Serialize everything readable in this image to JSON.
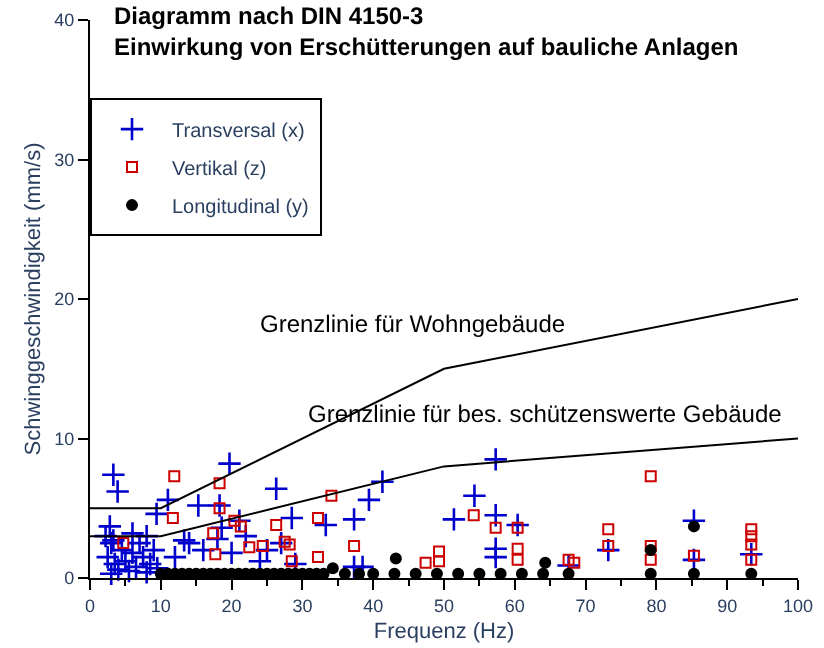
{
  "chart_data": {
    "type": "scatter",
    "title": "Diagramm nach DIN 4150-3\nEinwirkung von Erschütterungen auf bauliche Anlagen",
    "xlabel": "Frequenz (Hz)",
    "ylabel": "Schwinggeschwindigkeit (mm/s)",
    "xlim": [
      0,
      100
    ],
    "ylim": [
      0,
      40
    ],
    "xticks": [
      0,
      10,
      20,
      30,
      40,
      50,
      60,
      70,
      80,
      90,
      100
    ],
    "yticks": [
      0,
      10,
      20,
      30,
      40
    ],
    "legend": "top left",
    "series": [
      {
        "name": "Transversal (x)",
        "color": "#0000cc",
        "marker": "cross",
        "x": [
          3.3,
          3.9,
          2.8,
          19.7,
          11,
          9.4,
          15.3,
          18.3,
          26.3,
          28.5,
          13.3,
          18.6,
          21.1,
          3.3,
          57.3,
          41.3,
          39.4,
          54.3,
          33.3,
          37.3,
          51.4,
          57.3,
          60.4,
          57.3,
          57.3,
          37.3,
          38.5,
          85.3,
          73.2,
          93.4,
          85.3,
          67.6,
          2.5,
          3,
          3.5,
          4,
          4.5,
          5,
          5.5,
          6,
          6.5,
          7,
          7.5,
          8,
          8.5,
          9,
          9.5,
          2.2,
          3,
          6,
          8,
          12,
          14,
          16,
          18,
          20,
          22,
          25,
          27,
          29,
          24
        ],
        "values": [
          7.4,
          6.2,
          3.7,
          8.2,
          5.6,
          4.6,
          5.2,
          5.2,
          6.4,
          4.3,
          2.7,
          3.6,
          4.1,
          2.7,
          8.5,
          6.9,
          5.6,
          5.9,
          3.8,
          4.2,
          4.2,
          4.5,
          3.8,
          2.1,
          1.5,
          0.8,
          0.8,
          4.1,
          2.0,
          1.7,
          1.3,
          0.9,
          1.5,
          2.5,
          1,
          0.6,
          2,
          1.2,
          0.5,
          1.8,
          0.8,
          2.5,
          1.5,
          3,
          1,
          2,
          0.7,
          3,
          0.3,
          3.2,
          0.4,
          1.5,
          2.5,
          2,
          2.8,
          1.8,
          3,
          2,
          2.5,
          1,
          1.2
        ]
      },
      {
        "name": "Vertikal (z)",
        "color": "#cc0000",
        "marker": "square",
        "x": [
          11.9,
          18.3,
          18.3,
          11.7,
          20.4,
          21.3,
          26.3,
          34.1,
          32.2,
          17.4,
          4.7,
          22.5,
          24.4,
          27.5,
          28.2,
          32.2,
          28.5,
          17.7,
          54.2,
          57.3,
          60.4,
          37.3,
          60.4,
          49.3,
          49.3,
          47.4,
          60.4,
          68.4,
          79.2,
          73.2,
          73.2,
          79.2,
          79.2,
          85.3,
          93.4,
          93.4,
          93.4,
          93.4,
          67.6
        ],
        "values": [
          7.3,
          6.8,
          5.0,
          4.3,
          4.1,
          3.7,
          3.8,
          5.9,
          4.3,
          3.2,
          2.5,
          2.2,
          2.3,
          2.6,
          2.4,
          1.5,
          1.2,
          1.7,
          4.5,
          3.6,
          3.6,
          2.3,
          2.1,
          1.9,
          1.2,
          1.1,
          1.3,
          1.1,
          7.3,
          3.5,
          2.3,
          2.3,
          1.3,
          1.6,
          3.5,
          3.0,
          2.4,
          1.3,
          1.3
        ]
      },
      {
        "name": "Longitudinal (y)",
        "color": "#000000",
        "marker": "circle",
        "x": [
          10,
          11,
          12,
          13,
          14,
          15,
          16,
          17,
          18,
          19,
          20,
          21,
          22,
          23,
          24,
          25,
          26,
          27,
          28,
          29,
          30,
          31,
          32,
          33,
          34.3,
          43.2,
          64.3,
          36,
          38,
          40,
          43,
          46,
          49,
          52,
          55,
          58,
          61,
          64,
          67.6,
          79.2,
          85.3,
          93.4,
          85.3,
          79.2
        ],
        "values": [
          0.3,
          0.3,
          0.3,
          0.3,
          0.3,
          0.3,
          0.3,
          0.3,
          0.3,
          0.3,
          0.3,
          0.3,
          0.3,
          0.3,
          0.3,
          0.3,
          0.3,
          0.3,
          0.3,
          0.3,
          0.3,
          0.3,
          0.3,
          0.3,
          0.7,
          1.4,
          1.1,
          0.3,
          0.3,
          0.3,
          0.3,
          0.3,
          0.3,
          0.3,
          0.3,
          0.3,
          0.3,
          0.3,
          0.3,
          0.3,
          0.3,
          0.3,
          3.7,
          2.0
        ]
      },
      {
        "type": "line",
        "color": "#000000",
        "x": [
          0,
          10,
          50,
          100
        ],
        "values": [
          5,
          5,
          15,
          20
        ]
      },
      {
        "type": "line",
        "color": "#000000",
        "x": [
          0,
          10,
          50,
          100
        ],
        "values": [
          3,
          3,
          8,
          10
        ]
      }
    ],
    "annotations": [
      "Grenzlinie für Wohngebäude",
      "Grenzlinie für bes. schützenswerte Gebäude"
    ]
  }
}
